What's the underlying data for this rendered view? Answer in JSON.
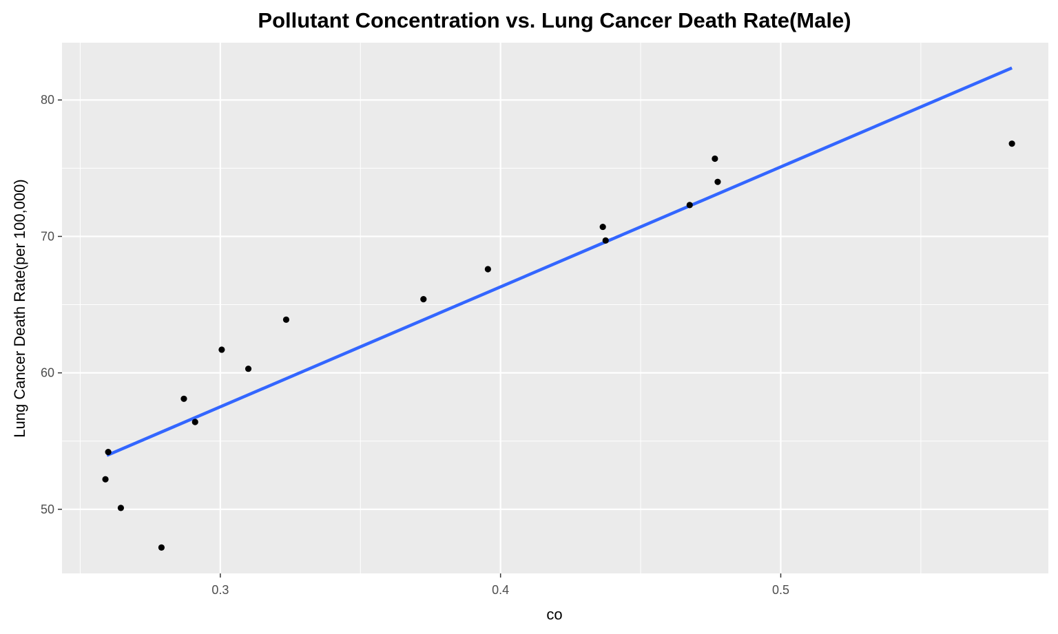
{
  "chart_data": {
    "type": "scatter",
    "title": "Pollutant Concentration vs. Lung Cancer Death Rate(Male)",
    "xlabel": "co",
    "ylabel": "Lung Cancer Death Rate(per 100,000)",
    "xlim": [
      0.2435,
      0.5955
    ],
    "ylim": [
      45.3,
      84.2
    ],
    "x_ticks": [
      0.3,
      0.4,
      0.5
    ],
    "x_tick_labels": [
      "0.3",
      "0.4",
      "0.5"
    ],
    "y_ticks": [
      50,
      60,
      70,
      80
    ],
    "y_tick_labels": [
      "50",
      "60",
      "70",
      "80"
    ],
    "grid": true,
    "background": "#EBEBEB",
    "gridline_color": "#FFFFFF",
    "point_color": "#000000",
    "line_color": "#3366FF",
    "points": [
      {
        "x": 0.259,
        "y": 52.2
      },
      {
        "x": 0.26,
        "y": 54.2
      },
      {
        "x": 0.2645,
        "y": 50.1
      },
      {
        "x": 0.279,
        "y": 47.2
      },
      {
        "x": 0.287,
        "y": 58.1
      },
      {
        "x": 0.291,
        "y": 56.4
      },
      {
        "x": 0.3005,
        "y": 61.7
      },
      {
        "x": 0.31,
        "y": 60.3
      },
      {
        "x": 0.3235,
        "y": 63.9
      },
      {
        "x": 0.3725,
        "y": 65.4
      },
      {
        "x": 0.3955,
        "y": 67.6
      },
      {
        "x": 0.4365,
        "y": 70.7
      },
      {
        "x": 0.4375,
        "y": 69.7
      },
      {
        "x": 0.4675,
        "y": 72.3
      },
      {
        "x": 0.4765,
        "y": 75.7
      },
      {
        "x": 0.4775,
        "y": 74.0
      },
      {
        "x": 0.5825,
        "y": 76.8
      }
    ],
    "trend_line": {
      "method": "linear",
      "x": [
        0.2595,
        0.5825
      ],
      "y": [
        53.95,
        82.35
      ]
    }
  }
}
